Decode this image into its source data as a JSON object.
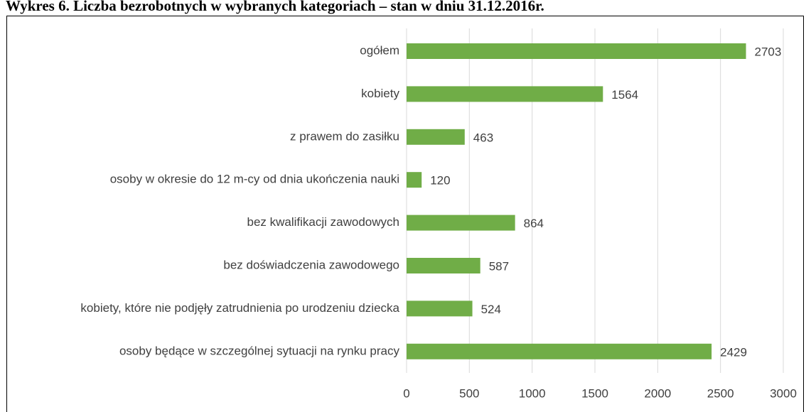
{
  "chart_data": {
    "type": "bar",
    "orientation": "horizontal",
    "title": "Wykres 6. Liczba bezrobotnych w wybranych kategoriach – stan w dniu 31.12.2016r.",
    "categories": [
      "ogółem",
      "kobiety",
      "z prawem do zasiłku",
      "osoby w okresie do 12 m-cy od dnia ukończenia nauki",
      "bez kwalifikacji zawodowych",
      "bez doświadczenia zawodowego",
      "kobiety, które nie podjęły zatrudnienia po urodzeniu dziecka",
      "osoby będące w szczególnej sytuacji na rynku pracy"
    ],
    "values": [
      2703,
      1564,
      463,
      120,
      864,
      587,
      524,
      2429
    ],
    "color": "#70ad47",
    "xlim": [
      0,
      3000
    ],
    "xticks": [
      0,
      500,
      1000,
      1500,
      2000,
      2500,
      3000
    ],
    "grid": true
  }
}
